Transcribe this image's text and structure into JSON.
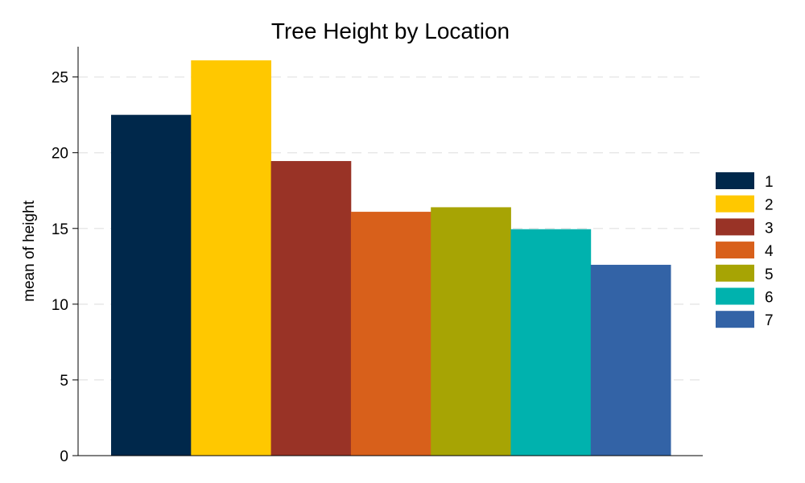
{
  "chart_data": {
    "type": "bar",
    "title": "Tree Height by Location",
    "ylabel": "mean of height",
    "xlabel": "",
    "ylim": [
      0,
      27
    ],
    "yticks": [
      0,
      5,
      10,
      15,
      20,
      25
    ],
    "grid": true,
    "legend_placement": "right",
    "series": [
      {
        "name": "1",
        "value": 22.5,
        "color": "#00284b"
      },
      {
        "name": "2",
        "value": 26.1,
        "color": "#ffc800"
      },
      {
        "name": "3",
        "value": 19.45,
        "color": "#993326"
      },
      {
        "name": "4",
        "value": 16.1,
        "color": "#d8601b"
      },
      {
        "name": "5",
        "value": 16.4,
        "color": "#a7a404"
      },
      {
        "name": "6",
        "value": 14.95,
        "color": "#00b2ae"
      },
      {
        "name": "7",
        "value": 12.6,
        "color": "#3363a6"
      }
    ]
  }
}
